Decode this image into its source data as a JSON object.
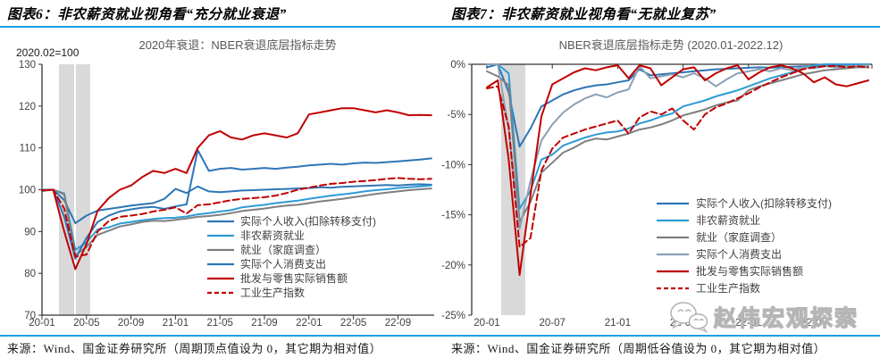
{
  "page": {
    "rule_color": "#18A0DC",
    "watermark": "赵伟宏观探索",
    "figures": [
      {
        "heading": "图表6：非农薪资就业视角看“充分就业衰退”",
        "source": "来源：Wind、国金证券研究所（周期顶点值设为 0，其它期为相对值）"
      },
      {
        "heading": "图表7：非农薪资就业视角看“无就业复苏”",
        "source": "来源：Wind、国金证券研究所（周期低谷值设为 0，其它期为相对值）"
      }
    ]
  },
  "chart_data": [
    {
      "type": "line",
      "title": "2020年衰退：NBER衰退底层指标走势",
      "axis_note": "2020.02=100",
      "grid": false,
      "legend_position": "inside-lower-right",
      "ylim": [
        70,
        130
      ],
      "y_ticks": [
        70,
        80,
        90,
        100,
        110,
        120,
        130
      ],
      "y_tick_suffix": "",
      "recession_band": {
        "from": "20-02",
        "to": "20-04"
      },
      "x": [
        "20-01",
        "20-02",
        "20-03",
        "20-04",
        "20-05",
        "20-06",
        "20-07",
        "20-08",
        "20-09",
        "20-10",
        "20-11",
        "20-12",
        "21-01",
        "21-02",
        "21-03",
        "21-04",
        "21-05",
        "21-06",
        "21-07",
        "21-08",
        "21-09",
        "21-10",
        "21-11",
        "21-12",
        "22-01",
        "22-02",
        "22-03",
        "22-04",
        "22-05",
        "22-06",
        "22-07",
        "22-08",
        "22-09",
        "22-10",
        "22-11",
        "22-12"
      ],
      "x_tick_labels": [
        "20-01",
        "20-05",
        "20-09",
        "21-01",
        "21-05",
        "21-09",
        "22-01",
        "22-05",
        "22-09"
      ],
      "series": [
        {
          "name": "实际个人收入(扣除转移支付)",
          "color": "#2E75B6",
          "dash": false,
          "values": [
            99.7,
            100,
            97.5,
            92,
            93.8,
            95,
            95.4,
            95.8,
            96.2,
            96.5,
            96.8,
            97.8,
            100.2,
            99.2,
            100.8,
            99.6,
            99.4,
            99.6,
            99.8,
            99.9,
            100,
            100.1,
            100.2,
            100.3,
            100.4,
            100.6,
            100.5,
            100.7,
            100.8,
            100.9,
            101,
            101.1,
            101,
            101.2,
            101.3,
            101.2
          ]
        },
        {
          "name": "非农薪资就业",
          "color": "#2E9BD5",
          "dash": false,
          "values": [
            100,
            100,
            99.1,
            85.6,
            87.4,
            90.5,
            91,
            91.9,
            92.3,
            92.7,
            93,
            93.2,
            93.3,
            93.6,
            94.1,
            94.4,
            94.8,
            95.1,
            95.8,
            96.1,
            96.4,
            96.8,
            97.1,
            97.4,
            97.8,
            98.2,
            98.6,
            98.9,
            99.2,
            99.6,
            99.9,
            100.1,
            100.4,
            100.6,
            100.8,
            101
          ]
        },
        {
          "name": "就业（家庭调查）",
          "color": "#7F7F7F",
          "dash": false,
          "values": [
            100,
            100,
            98.9,
            84.3,
            86.3,
            89.2,
            90.2,
            91.2,
            91.7,
            92.3,
            92.6,
            92.5,
            92.8,
            93.1,
            93.5,
            93.7,
            94,
            94.4,
            94.9,
            95.2,
            95.5,
            95.9,
            96.2,
            96.4,
            96.8,
            97.2,
            97.5,
            97.8,
            98.2,
            98.6,
            99,
            99.3,
            99.6,
            99.9,
            100.1,
            100.3
          ]
        },
        {
          "name": "实际个人消费支出",
          "color": "#2E75B6",
          "dash": false,
          "values": [
            100,
            100,
            93.5,
            83.5,
            88.5,
            92.3,
            93.8,
            94.8,
            95.3,
            95.7,
            95.9,
            95.4,
            96,
            96.5,
            109.5,
            104.5,
            105,
            105.2,
            104.8,
            105,
            105.2,
            105,
            105.3,
            105.5,
            105.8,
            106,
            106.2,
            106,
            106.3,
            106.5,
            106.4,
            106.6,
            106.8,
            107,
            107.2,
            107.5
          ]
        },
        {
          "name": "批发与零售实际销售额",
          "color": "#C00000",
          "dash": false,
          "values": [
            99.8,
            100,
            90,
            81,
            87,
            95,
            98,
            100,
            101,
            103,
            104.5,
            104,
            105,
            104,
            110,
            113,
            114,
            112.5,
            112,
            113,
            113.5,
            113,
            112.5,
            113.5,
            118,
            118.5,
            119,
            119.5,
            119.5,
            119,
            118.5,
            119,
            118.5,
            117.8,
            117.9,
            117.8
          ]
        },
        {
          "name": "工业生产指数",
          "color": "#C00000",
          "dash": true,
          "values": [
            99.8,
            100,
            95.5,
            84,
            84.5,
            90,
            92.5,
            93.5,
            93.8,
            94.2,
            94.8,
            95.2,
            95.8,
            94.3,
            96.3,
            96.5,
            97,
            97.5,
            97.8,
            98,
            98.2,
            98.6,
            99.2,
            100,
            100.5,
            101,
            101.4,
            101.6,
            101.9,
            102.1,
            102.3,
            102.6,
            102.8,
            102.6,
            102.5,
            102.6
          ]
        }
      ]
    },
    {
      "type": "line",
      "title": "NBER衰退底层指标走势 (2020.01-2022.12)",
      "axis_note": "",
      "grid": false,
      "legend_position": "inside-right",
      "ylim": [
        -25,
        0
      ],
      "y_ticks": [
        0,
        -5,
        -10,
        -15,
        -20,
        -25
      ],
      "y_tick_suffix": "%",
      "recession_band": {
        "from": "20-02",
        "to": "20-04"
      },
      "x": [
        "20-01",
        "20-02",
        "20-03",
        "20-04",
        "20-05",
        "20-06",
        "20-07",
        "20-08",
        "20-09",
        "20-10",
        "20-11",
        "20-12",
        "21-01",
        "21-02",
        "21-03",
        "21-04",
        "21-05",
        "21-06",
        "21-07",
        "21-08",
        "21-09",
        "21-10",
        "21-11",
        "21-12",
        "22-01",
        "22-02",
        "22-03",
        "22-04",
        "22-05",
        "22-06",
        "22-07",
        "22-08",
        "22-09",
        "22-10",
        "22-11",
        "22-12"
      ],
      "x_tick_labels": [
        "20-01",
        "20-07",
        "21-01",
        "21-07",
        "22-01",
        "22-07"
      ],
      "series": [
        {
          "name": "实际个人收入(扣除转移支付)",
          "color": "#2E75B6",
          "dash": false,
          "values": [
            -0.3,
            0,
            -2.8,
            -8.2,
            -6.4,
            -4.2,
            -3.6,
            -3,
            -2.6,
            -2.3,
            -2.1,
            -2,
            -1.8,
            -1.6,
            -0.5,
            -1.1,
            -1,
            -0.9,
            -0.8,
            -0.7,
            -0.6,
            -0.5,
            -0.45,
            -0.4,
            -0.35,
            -0.3,
            -0.35,
            -0.3,
            -0.25,
            -0.2,
            -0.2,
            -0.15,
            -0.15,
            -0.1,
            -0.1,
            -0.1
          ]
        },
        {
          "name": "非农薪资就业",
          "color": "#2E9BD5",
          "dash": false,
          "values": [
            0,
            0,
            -0.9,
            -14.4,
            -12.6,
            -9.5,
            -9,
            -8.1,
            -7.7,
            -7.3,
            -7,
            -6.8,
            -6.7,
            -6.4,
            -5.9,
            -5.6,
            -5.2,
            -4.9,
            -4.2,
            -3.9,
            -3.6,
            -3.2,
            -2.9,
            -2.6,
            -2.2,
            -1.8,
            -1.4,
            -1.1,
            -0.8,
            -0.4,
            -0.1,
            0,
            0,
            0,
            0,
            0
          ]
        },
        {
          "name": "就业（家庭调查）",
          "color": "#7F7F7F",
          "dash": false,
          "values": [
            -0.7,
            -1.2,
            -2.1,
            -15.7,
            -13.7,
            -10.8,
            -9.8,
            -8.8,
            -8.3,
            -7.7,
            -7.4,
            -7.5,
            -7.2,
            -6.9,
            -6.5,
            -6.3,
            -6,
            -5.6,
            -5.1,
            -4.8,
            -4.5,
            -4.1,
            -3.8,
            -3.6,
            -2.6,
            -2.2,
            -1.9,
            -1.6,
            -1.3,
            -1,
            -0.8,
            -0.6,
            -0.5,
            -0.4,
            -0.3,
            -0.3
          ]
        },
        {
          "name": "实际个人消费支出",
          "color": "#8CA0B4",
          "dash": false,
          "values": [
            0,
            0,
            -6.5,
            -16.4,
            -11.6,
            -7.6,
            -6,
            -4.8,
            -4,
            -3.4,
            -3,
            -3.3,
            -2.8,
            -2.5,
            -0.2,
            -1.4,
            -1.2,
            -1,
            -1.3,
            -0.9,
            -1.4,
            -2.2,
            -1.5,
            -0.9,
            -0.7,
            -0.5,
            -0.7,
            -0.4,
            -0.6,
            -0.3,
            -0.4,
            -0.2,
            -0.3,
            -0.2,
            -0.15,
            -0.1
          ]
        },
        {
          "name": "批发与零售实际销售额",
          "color": "#C00000",
          "dash": false,
          "values": [
            -2.3,
            -1.6,
            -9.5,
            -21,
            -13,
            -5.2,
            -2,
            -1.4,
            -0.8,
            -0.4,
            -0.6,
            -0.3,
            -0.1,
            -1.4,
            -0.1,
            -0.4,
            -2.1,
            -1.3,
            -0.5,
            -0.3,
            -1.6,
            -0.9,
            -0.4,
            -0.1,
            -1.5,
            -0.8,
            -0.3,
            -0.1,
            -0.4,
            -0.9,
            -1.8,
            -1.3,
            -2,
            -2.2,
            -1.9,
            -1.6
          ]
        },
        {
          "name": "工业生产指数",
          "color": "#C00000",
          "dash": true,
          "values": [
            -2.4,
            -2.2,
            -6.2,
            -18.2,
            -17.3,
            -10.6,
            -8.4,
            -7.3,
            -6.9,
            -6.5,
            -6.2,
            -5.9,
            -5.6,
            -6.9,
            -5.3,
            -4.7,
            -5,
            -4.4,
            -5.6,
            -6.5,
            -5,
            -4.3,
            -3.9,
            -3.4,
            -2.9,
            -2.3,
            -1.8,
            -1.3,
            -0.9,
            -0.5,
            -0.3,
            -0.2,
            -0.15,
            -0.3,
            -0.2,
            -0.3
          ]
        }
      ]
    }
  ]
}
